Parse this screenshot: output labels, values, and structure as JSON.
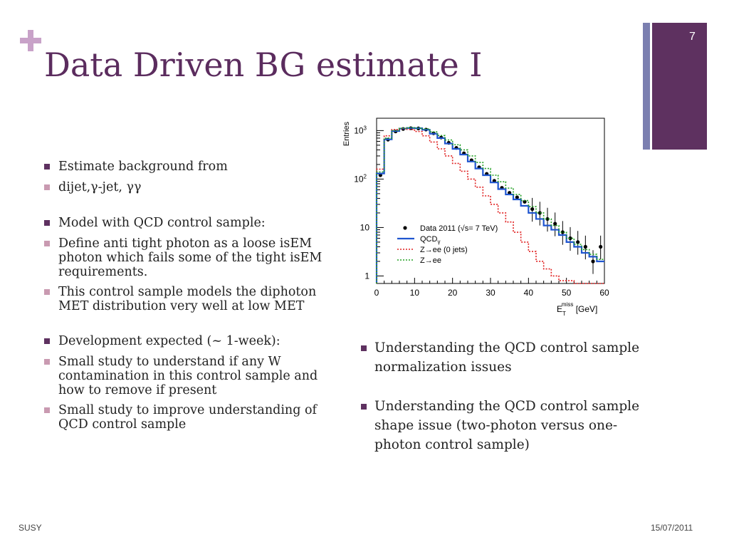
{
  "slide": {
    "title": "Data Driven BG estimate I",
    "page_number": "7",
    "footer_left": "SUSY",
    "footer_right": "15/07/2011"
  },
  "left_bullets": [
    {
      "text": "Estimate background from",
      "level": 1
    },
    {
      "text": " dijet,γ-jet, γγ",
      "level": 2
    },
    {
      "text": "Model with QCD control sample:",
      "level": 1
    },
    {
      "text": "Define anti tight photon as a loose isEM photon which fails some of the tight isEM requirements.",
      "level": 2
    },
    {
      "text": "This control sample models the diphoton MET distribution very well at low MET",
      "level": 2
    },
    {
      "text": "Development expected (~ 1-week):",
      "level": 1
    },
    {
      "text": "Small study to understand if any W contamination in this control sample and how to remove if present",
      "level": 2
    },
    {
      "text": "Small study to improve understanding of QCD control sample",
      "level": 2
    }
  ],
  "right_bullets": [
    {
      "text": "Understanding the QCD control sample normalization issues"
    },
    {
      "text": "Understanding the QCD control sample shape issue (two-photon   versus one-photon control sample)"
    }
  ],
  "chart_data": {
    "type": "line",
    "title": "",
    "ylabel": "Entries",
    "xlabel_main": "E",
    "xlabel_sup": "miss",
    "xlabel_sub": "T",
    "xlabel_unit": " [GeV]",
    "xlim": [
      0,
      60
    ],
    "ylim": [
      0.7,
      1800
    ],
    "yscale": "log",
    "x_ticks": [
      "0",
      "10",
      "20",
      "30",
      "40",
      "50",
      "60"
    ],
    "y_ticks": [
      {
        "base": "1",
        "exp": ""
      },
      {
        "base": "10",
        "exp": ""
      },
      {
        "base": "10",
        "exp": "2"
      },
      {
        "base": "10",
        "exp": "3"
      }
    ],
    "x": [
      1,
      3,
      5,
      7,
      9,
      11,
      13,
      15,
      17,
      19,
      21,
      23,
      25,
      27,
      29,
      31,
      33,
      35,
      37,
      39,
      41,
      43,
      45,
      47,
      49,
      51,
      53,
      55,
      57,
      59
    ],
    "series": [
      {
        "name": "Data 2011 (√s= 7 TeV)",
        "style": "points",
        "color": "#000000",
        "values": [
          120,
          650,
          960,
          1080,
          1120,
          1110,
          1050,
          880,
          720,
          560,
          440,
          340,
          245,
          175,
          128,
          92,
          66,
          52,
          42,
          34,
          24,
          20,
          15,
          12,
          8,
          6,
          5,
          4,
          2,
          4
        ]
      },
      {
        "name": "QCD",
        "name_sub": "γ",
        "style": "solid",
        "color": "#1f55d0",
        "values": [
          130,
          660,
          980,
          1100,
          1130,
          1120,
          1040,
          860,
          700,
          540,
          420,
          320,
          230,
          165,
          120,
          85,
          62,
          48,
          38,
          28,
          20,
          15,
          11,
          9,
          7,
          5,
          4,
          3,
          2.5,
          2
        ]
      },
      {
        "name": "Z→ee (0 jets)",
        "style": "dotted",
        "color": "#e02020",
        "values": [
          160,
          780,
          1050,
          1100,
          1060,
          960,
          780,
          580,
          420,
          300,
          210,
          145,
          100,
          68,
          45,
          30,
          20,
          13,
          8,
          5,
          3.2,
          2,
          1.4,
          1,
          0.8,
          0.8,
          0.7,
          0.7,
          0.7,
          0.7
        ]
      },
      {
        "name": "Z→ee",
        "style": "dotted",
        "color": "#23a023",
        "values": [
          140,
          700,
          1000,
          1120,
          1150,
          1130,
          1080,
          940,
          790,
          640,
          510,
          400,
          300,
          220,
          165,
          120,
          88,
          65,
          48,
          36,
          27,
          20,
          15,
          11,
          8,
          6,
          4.5,
          3.5,
          2.8,
          2.2
        ]
      }
    ],
    "legend": "inside-bottom-left"
  },
  "colors": {
    "title": "#5b2c5e",
    "accent_bar": "#5e3160",
    "accent_thin": "#7b7fb0",
    "bullet_dark": "#5e3160",
    "bullet_light": "#c99ab1",
    "plus": "#c8a2c8"
  }
}
